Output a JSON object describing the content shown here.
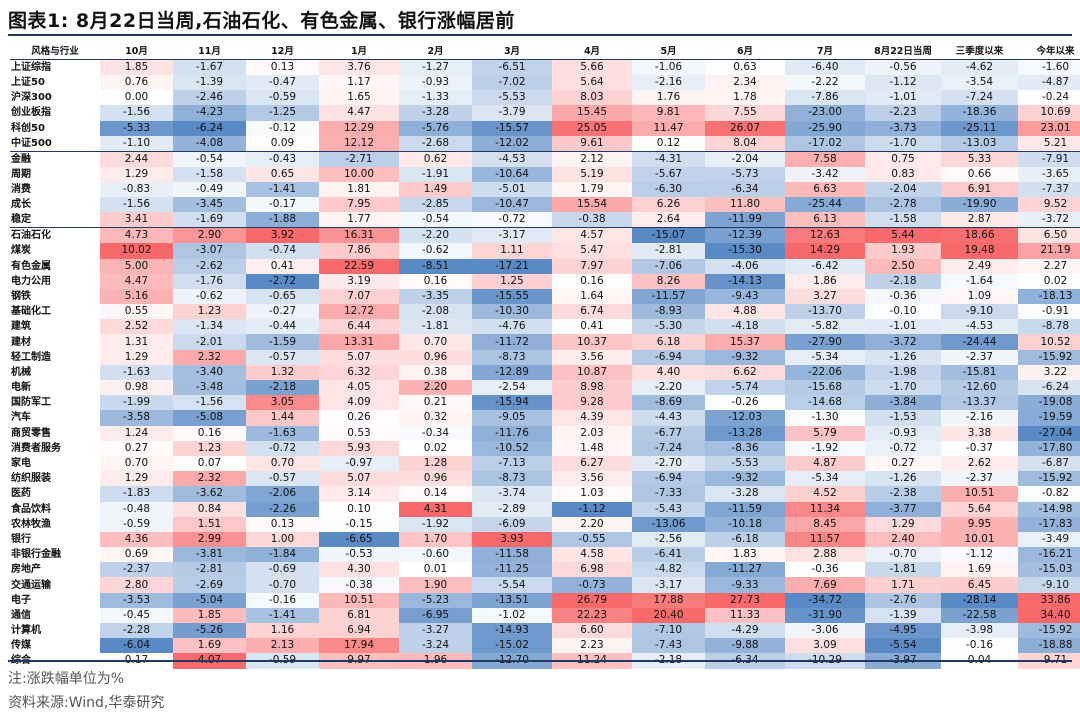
{
  "title": "图表1:  8月22日当周,石油石化、有色金属、银行涨幅居前",
  "columns": [
    "风格与行业",
    "10月",
    "11月",
    "12月",
    "1月",
    "2月",
    "3月",
    "4月",
    "5月",
    "6月",
    "7月",
    "8月22日当周",
    "三季度以来",
    "今年以来"
  ],
  "group_breaks": [
    5,
    10
  ],
  "rows": [
    [
      "上证综指",
      "1.85",
      "-1.67",
      "0.13",
      "3.76",
      "-1.27",
      "-6.51",
      "5.66",
      "-1.06",
      "0.63",
      "-6.40",
      "-0.56",
      "-4.62",
      "-1.60"
    ],
    [
      "上证50",
      "0.76",
      "-1.39",
      "-0.47",
      "1.17",
      "-0.93",
      "-7.02",
      "5.64",
      "-2.16",
      "2.34",
      "-2.22",
      "-1.12",
      "-3.54",
      "-4.87"
    ],
    [
      "沪深300",
      "0.00",
      "-2.46",
      "-0.59",
      "1.65",
      "-1.33",
      "-5.53",
      "8.03",
      "1.76",
      "1.78",
      "-7.86",
      "-1.01",
      "-7.24",
      "-0.24"
    ],
    [
      "创业板指",
      "-1.56",
      "-4.23",
      "-1.25",
      "4.47",
      "-3.28",
      "-3.79",
      "15.45",
      "9.81",
      "7.55",
      "-23.00",
      "-2.23",
      "-18.36",
      "10.69"
    ],
    [
      "科创50",
      "-5.33",
      "-6.24",
      "-0.12",
      "12.29",
      "-5.76",
      "-15.57",
      "25.05",
      "11.47",
      "26.07",
      "-25.90",
      "-3.73",
      "-25.11",
      "23.01"
    ],
    [
      "中证500",
      "-1.10",
      "-4.08",
      "0.09",
      "12.12",
      "-2.68",
      "-12.02",
      "9.61",
      "0.12",
      "8.04",
      "-17.02",
      "-1.70",
      "-13.03",
      "5.21"
    ],
    [
      "金融",
      "2.44",
      "-0.54",
      "-0.43",
      "-2.71",
      "0.62",
      "-4.53",
      "2.12",
      "-4.31",
      "-2.04",
      "7.58",
      "0.75",
      "5.33",
      "-7.91"
    ],
    [
      "周期",
      "1.29",
      "-1.58",
      "0.65",
      "10.00",
      "-1.91",
      "-10.64",
      "5.19",
      "-5.67",
      "-5.73",
      "-3.42",
      "0.83",
      "0.66",
      "-3.65"
    ],
    [
      "消费",
      "-0.83",
      "-0.49",
      "-1.41",
      "1.81",
      "1.49",
      "-5.01",
      "1.79",
      "-6.30",
      "-6.34",
      "6.63",
      "-2.04",
      "6.91",
      "-7.37"
    ],
    [
      "成长",
      "-1.56",
      "-3.45",
      "-0.17",
      "7.95",
      "-2.85",
      "-10.47",
      "15.54",
      "6.26",
      "11.80",
      "-25.44",
      "-2.78",
      "-19.90",
      "9.52"
    ],
    [
      "稳定",
      "3.41",
      "-1.69",
      "-1.88",
      "1.77",
      "-0.54",
      "-0.72",
      "-0.38",
      "2.64",
      "-11.99",
      "6.13",
      "-1.58",
      "2.87",
      "-3.72"
    ],
    [
      "石油石化",
      "4.73",
      "2.90",
      "3.92",
      "16.31",
      "-2.20",
      "-3.17",
      "4.57",
      "-15.07",
      "-12.39",
      "12.63",
      "5.44",
      "18.66",
      "6.50"
    ],
    [
      "煤炭",
      "10.02",
      "-3.07",
      "-0.74",
      "7.86",
      "-0.62",
      "1.11",
      "5.47",
      "-2.81",
      "-15.30",
      "14.29",
      "1.93",
      "19.48",
      "21.19"
    ],
    [
      "有色金属",
      "5.00",
      "-2.62",
      "0.41",
      "22.59",
      "-8.51",
      "-17.21",
      "7.97",
      "-7.06",
      "-4.06",
      "-6.42",
      "2.50",
      "2.49",
      "2.27"
    ],
    [
      "电力公用",
      "4.47",
      "-1.76",
      "-2.72",
      "3.19",
      "0.16",
      "1.25",
      "0.16",
      "8.26",
      "-14.13",
      "1.86",
      "-2.18",
      "-1.64",
      "0.02"
    ],
    [
      "钢铁",
      "5.16",
      "-0.62",
      "-0.65",
      "7.07",
      "-3.35",
      "-15.55",
      "1.64",
      "-11.57",
      "-9.43",
      "3.27",
      "-0.36",
      "1.09",
      "-18.13"
    ],
    [
      "基础化工",
      "0.55",
      "1.23",
      "-0.27",
      "12.72",
      "-2.08",
      "-10.30",
      "6.74",
      "-8.93",
      "4.88",
      "-13.70",
      "-0.10",
      "-9.10",
      "-0.91"
    ],
    [
      "建筑",
      "2.52",
      "-1.34",
      "-0.44",
      "6.44",
      "-1.81",
      "-4.76",
      "0.41",
      "-5.30",
      "-4.18",
      "-5.82",
      "-1.01",
      "-4.53",
      "-8.78"
    ],
    [
      "建材",
      "1.31",
      "-2.01",
      "-1.59",
      "13.31",
      "0.70",
      "-11.72",
      "10.37",
      "6.18",
      "15.37",
      "-27.90",
      "-3.72",
      "-24.44",
      "10.52"
    ],
    [
      "轻工制造",
      "1.29",
      "2.32",
      "-0.57",
      "5.07",
      "0.96",
      "-8.73",
      "3.56",
      "-6.94",
      "-9.32",
      "-5.34",
      "-1.26",
      "-2.37",
      "-15.92"
    ],
    [
      "机械",
      "-1.63",
      "-3.40",
      "1.32",
      "6.32",
      "0.38",
      "-12.89",
      "10.87",
      "4.40",
      "6.62",
      "-22.06",
      "-1.98",
      "-15.81",
      "3.22"
    ],
    [
      "电新",
      "0.98",
      "-3.48",
      "-2.18",
      "4.05",
      "2.20",
      "-2.54",
      "8.98",
      "-2.20",
      "-5.74",
      "-15.68",
      "-1.70",
      "-12.60",
      "-6.24"
    ],
    [
      "国防军工",
      "-1.99",
      "-1.56",
      "3.05",
      "4.09",
      "0.21",
      "-15.94",
      "9.28",
      "-8.69",
      "-0.26",
      "-14.68",
      "-3.84",
      "-13.37",
      "-19.08"
    ],
    [
      "汽车",
      "-3.58",
      "-5.08",
      "1.44",
      "0.26",
      "0.32",
      "-9.05",
      "4.39",
      "-4.43",
      "-12.03",
      "-1.30",
      "-1.53",
      "-2.16",
      "-19.59"
    ],
    [
      "商贸零售",
      "1.24",
      "0.16",
      "-1.63",
      "0.53",
      "-0.34",
      "-11.76",
      "2.03",
      "-6.77",
      "-13.28",
      "5.79",
      "-0.93",
      "3.38",
      "-27.04"
    ],
    [
      "消费者服务",
      "0.27",
      "1.23",
      "-0.72",
      "5.93",
      "0.02",
      "-10.52",
      "1.48",
      "-7.24",
      "-8.36",
      "-1.92",
      "-0.72",
      "-0.37",
      "-17.80"
    ],
    [
      "家电",
      "0.70",
      "0.07",
      "0.70",
      "-0.97",
      "1.28",
      "-7.13",
      "6.27",
      "-2.70",
      "-5.53",
      "4.87",
      "0.27",
      "2.62",
      "-6.87"
    ],
    [
      "纺织服装",
      "1.29",
      "2.32",
      "-0.57",
      "5.07",
      "0.96",
      "-8.73",
      "3.56",
      "-6.94",
      "-9.32",
      "-5.34",
      "-1.26",
      "-2.37",
      "-15.92"
    ],
    [
      "医药",
      "-1.83",
      "-3.62",
      "-2.06",
      "3.14",
      "0.14",
      "-3.74",
      "1.03",
      "-7.33",
      "-3.28",
      "4.52",
      "-2.38",
      "10.51",
      "-0.82"
    ],
    [
      "食品饮料",
      "-0.48",
      "0.84",
      "-2.26",
      "0.10",
      "4.31",
      "-2.89",
      "-1.12",
      "-5.43",
      "-11.59",
      "11.34",
      "-3.77",
      "5.64",
      "-14.98"
    ],
    [
      "农林牧渔",
      "-0.59",
      "1.51",
      "0.13",
      "-0.15",
      "-1.92",
      "-6.09",
      "2.20",
      "-13.06",
      "-10.18",
      "8.45",
      "1.29",
      "9.95",
      "-17.83"
    ],
    [
      "银行",
      "4.36",
      "2.99",
      "1.00",
      "-6.65",
      "1.70",
      "3.93",
      "-0.55",
      "-2.56",
      "-6.18",
      "11.57",
      "2.40",
      "10.01",
      "-3.49"
    ],
    [
      "非银行金融",
      "0.69",
      "-3.81",
      "-1.84",
      "-0.53",
      "-0.60",
      "-11.58",
      "4.58",
      "-6.41",
      "1.83",
      "2.88",
      "-0.70",
      "-1.12",
      "-16.21"
    ],
    [
      "房地产",
      "-2.37",
      "-2.81",
      "-0.69",
      "4.30",
      "0.01",
      "-11.25",
      "6.98",
      "-4.82",
      "-11.27",
      "-0.36",
      "-1.81",
      "1.69",
      "-15.03"
    ],
    [
      "交通运输",
      "2.80",
      "-2.69",
      "-0.70",
      "-0.38",
      "1.90",
      "-5.54",
      "-0.73",
      "-3.17",
      "-9.33",
      "7.69",
      "1.71",
      "6.45",
      "-9.10"
    ],
    [
      "电子",
      "-3.53",
      "-5.04",
      "-0.16",
      "10.51",
      "-5.23",
      "-13.51",
      "26.79",
      "17.88",
      "27.73",
      "-34.72",
      "-2.76",
      "-28.14",
      "33.86"
    ],
    [
      "通信",
      "-0.45",
      "1.85",
      "-1.41",
      "6.81",
      "-6.95",
      "-1.02",
      "22.23",
      "20.40",
      "11.33",
      "-31.90",
      "-1.39",
      "-22.58",
      "34.40"
    ],
    [
      "计算机",
      "-2.28",
      "-5.26",
      "1.16",
      "6.94",
      "-3.27",
      "-14.93",
      "6.60",
      "-7.10",
      "-4.29",
      "-3.06",
      "-4.95",
      "-3.98",
      "-15.92"
    ],
    [
      "传媒",
      "-6.04",
      "1.69",
      "2.13",
      "17.94",
      "-3.24",
      "-15.02",
      "2.23",
      "-7.43",
      "-9.88",
      "3.09",
      "-5.54",
      "-0.16",
      "-18.88"
    ],
    [
      "综合",
      "0.17",
      "4.07",
      "-0.59",
      "9.97",
      "1.96",
      "-12.70",
      "11.24",
      "-2.18",
      "-6.34",
      "-10.29",
      "-3.97",
      "0.04",
      "9.71"
    ]
  ],
  "note": "注:涨跌幅单位为%",
  "source": "资料来源:Wind,华泰研究",
  "colors": {
    "positive": "#f8696b",
    "negative": "#5a8ac6",
    "neutral": "#ffffff",
    "rule": "#1f3864"
  }
}
